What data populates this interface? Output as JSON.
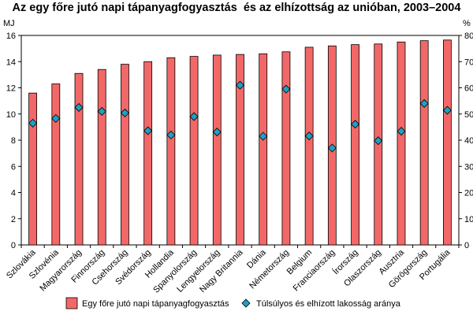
{
  "chart_data": {
    "type": "bar",
    "title": "Az egy főre jutó napi tápanyagfogyasztás  és az elhízottság az unióban, 2003–2004",
    "left_unit": "MJ",
    "right_unit": "%",
    "categories": [
      "Szlovákia",
      "Szlovénia",
      "Magyarország",
      "Finnország",
      "Csehország",
      "Svédország",
      "Hollandia",
      "Spanyolország",
      "Lengyelország",
      "Nagy Britannia",
      "Dánia",
      "Németország",
      "Belgium",
      "Franciaország",
      "Írország",
      "Olaszország",
      "Ausztria",
      "Görögország",
      "Portugália"
    ],
    "series": [
      {
        "name": "Egy főre jutó napi tápanyagfogyasztás",
        "kind": "bar",
        "axis": "left",
        "color": "#f26868",
        "values": [
          11.6,
          12.3,
          13.1,
          13.4,
          13.8,
          14.0,
          14.3,
          14.4,
          14.5,
          14.55,
          14.6,
          14.75,
          15.1,
          15.2,
          15.3,
          15.35,
          15.5,
          15.6,
          15.65
        ]
      },
      {
        "name": "Túlsúlyos és elhízott lakosság aránya",
        "kind": "marker",
        "axis": "right",
        "color": "#1ba1c4",
        "values": [
          46.5,
          48.3,
          52.5,
          51.0,
          50.4,
          43.6,
          42.0,
          49.0,
          43.1,
          61.0,
          41.5,
          59.5,
          41.6,
          37.0,
          46.1,
          39.8,
          43.4,
          54.0,
          51.4
        ]
      }
    ],
    "ylim_left": [
      0,
      16
    ],
    "yticks_left": [
      0,
      2,
      4,
      6,
      8,
      10,
      12,
      14,
      16
    ],
    "ylim_right": [
      0,
      80
    ],
    "yticks_right": [
      0,
      10,
      20,
      30,
      40,
      50,
      60,
      70,
      80
    ],
    "grid": false,
    "legend_position": "bottom"
  }
}
